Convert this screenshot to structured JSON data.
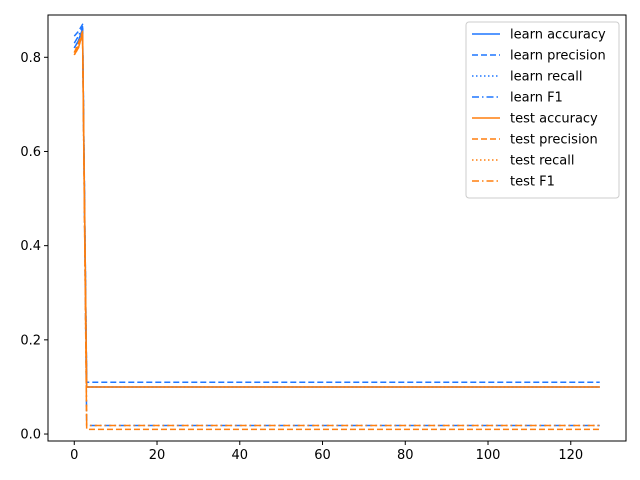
{
  "chart_data": {
    "type": "line",
    "title": "",
    "xlabel": "",
    "ylabel": "",
    "xlim": [
      -6.35,
      133.35
    ],
    "ylim": [
      -0.0148,
      0.8898
    ],
    "xticks": [
      0,
      20,
      40,
      60,
      80,
      100,
      120
    ],
    "yticks": [
      0.0,
      0.2,
      0.4,
      0.6,
      0.8
    ],
    "xtick_labels": [
      "0",
      "20",
      "40",
      "60",
      "80",
      "100",
      "120"
    ],
    "ytick_labels": [
      "0.0",
      "0.2",
      "0.4",
      "0.6",
      "0.8"
    ],
    "legend_position": "top-right",
    "grid": false,
    "x_range": [
      0,
      127
    ],
    "series": [
      {
        "name": "learn accuracy",
        "color": "#1f77ff",
        "dash": "solid",
        "head": [
          [
            0,
            0.82
          ],
          [
            1,
            0.835
          ],
          [
            2,
            0.86
          ],
          [
            3,
            0.1
          ]
        ],
        "tail": 0.1
      },
      {
        "name": "learn precision",
        "color": "#1f77ff",
        "dash": "dashed",
        "head": [
          [
            0,
            0.845
          ],
          [
            1,
            0.855
          ],
          [
            2,
            0.87
          ],
          [
            3,
            0.11
          ]
        ],
        "tail": 0.11
      },
      {
        "name": "learn recall",
        "color": "#1f77ff",
        "dash": "dotted",
        "head": [
          [
            0,
            0.82
          ],
          [
            1,
            0.835
          ],
          [
            2,
            0.86
          ],
          [
            3,
            0.1
          ]
        ],
        "tail": 0.1
      },
      {
        "name": "learn F1",
        "color": "#1f77ff",
        "dash": "dashdot",
        "head": [
          [
            0,
            0.83
          ],
          [
            1,
            0.845
          ],
          [
            2,
            0.865
          ],
          [
            3,
            0.018
          ]
        ],
        "tail": 0.018
      },
      {
        "name": "test accuracy",
        "color": "#ff7f0e",
        "dash": "solid",
        "head": [
          [
            0,
            0.805
          ],
          [
            1,
            0.82
          ],
          [
            2,
            0.85
          ],
          [
            3,
            0.1
          ]
        ],
        "tail": 0.1
      },
      {
        "name": "test precision",
        "color": "#ff7f0e",
        "dash": "dashed",
        "head": [
          [
            0,
            0.81
          ],
          [
            1,
            0.83
          ],
          [
            2,
            0.855
          ],
          [
            3,
            0.01
          ]
        ],
        "tail": 0.01
      },
      {
        "name": "test recall",
        "color": "#ff7f0e",
        "dash": "dotted",
        "head": [
          [
            0,
            0.805
          ],
          [
            1,
            0.82
          ],
          [
            2,
            0.85
          ],
          [
            3,
            0.1
          ]
        ],
        "tail": 0.1
      },
      {
        "name": "test F1",
        "color": "#ff7f0e",
        "dash": "dashdot",
        "head": [
          [
            0,
            0.81
          ],
          [
            1,
            0.825
          ],
          [
            2,
            0.85
          ],
          [
            3,
            0.018
          ]
        ],
        "tail": 0.018
      }
    ]
  }
}
